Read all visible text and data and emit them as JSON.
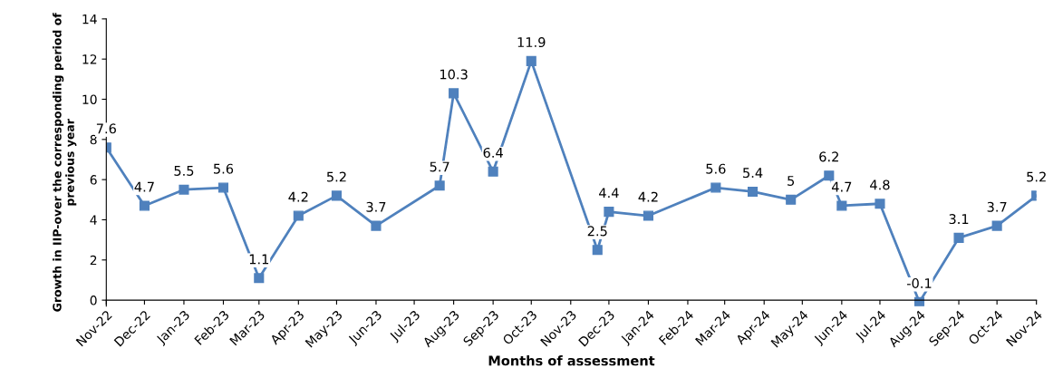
{
  "chart_data": {
    "type": "line",
    "xlabel": "Months of assessment",
    "ylabel": "Growth in IIP-over the corresponding period of\nprevious year",
    "x": [
      "2022-11-01",
      "2022-12-01",
      "2023-01-01",
      "2023-02-01",
      "2023-03-01",
      "2023-04-01",
      "2023-05-01",
      "2023-06-01",
      "2023-07-21",
      "2023-08-01",
      "2023-09-01",
      "2023-10-01",
      "2023-11-22",
      "2023-12-01",
      "2024-01-01",
      "2024-02-23",
      "2024-03-23",
      "2024-04-22",
      "2024-05-22",
      "2024-06-01",
      "2024-07-01",
      "2024-08-01",
      "2024-09-01",
      "2024-10-01",
      "2024-11-01"
    ],
    "series": [
      {
        "color": "#4f81bd",
        "values": [
          7.6,
          4.7,
          5.5,
          5.6,
          1.1,
          4.2,
          5.2,
          3.7,
          5.7,
          10.3,
          6.4,
          11.9,
          2.5,
          4.4,
          4.2,
          5.6,
          5.4,
          5,
          6.2,
          4.7,
          4.8,
          -0.1,
          3.1,
          3.7,
          5.2
        ]
      }
    ],
    "data_labels": true,
    "marker": "square",
    "line_style": "solid",
    "grid": false,
    "legend": false,
    "ylim": [
      -0.3,
      14
    ],
    "yticks": [
      0,
      2,
      4,
      6,
      8,
      10,
      12,
      14
    ],
    "xlim": [
      "2022-11-01",
      "2024-11-01"
    ],
    "xticks": [
      {
        "value": "2022-11-01",
        "label": "Nov-22"
      },
      {
        "value": "2022-12-01",
        "label": "Dec-22"
      },
      {
        "value": "2023-01-01",
        "label": "Jan-23"
      },
      {
        "value": "2023-02-01",
        "label": "Feb-23"
      },
      {
        "value": "2023-03-01",
        "label": "Mar-23"
      },
      {
        "value": "2023-04-01",
        "label": "Apr-23"
      },
      {
        "value": "2023-05-01",
        "label": "May-23"
      },
      {
        "value": "2023-06-01",
        "label": "Jun-23"
      },
      {
        "value": "2023-07-01",
        "label": "Jul-23"
      },
      {
        "value": "2023-08-01",
        "label": "Aug-23"
      },
      {
        "value": "2023-09-01",
        "label": "Sep-23"
      },
      {
        "value": "2023-10-01",
        "label": "Oct-23"
      },
      {
        "value": "2023-11-01",
        "label": "Nov-23"
      },
      {
        "value": "2023-12-01",
        "label": "Dec-23"
      },
      {
        "value": "2024-01-01",
        "label": "Jan-24"
      },
      {
        "value": "2024-02-01",
        "label": "Feb-24"
      },
      {
        "value": "2024-03-01",
        "label": "Mar-24"
      },
      {
        "value": "2024-04-01",
        "label": "Apr-24"
      },
      {
        "value": "2024-05-01",
        "label": "May-24"
      },
      {
        "value": "2024-06-01",
        "label": "Jun-24"
      },
      {
        "value": "2024-07-01",
        "label": "Jul-24"
      },
      {
        "value": "2024-08-01",
        "label": "Aug-24"
      },
      {
        "value": "2024-09-01",
        "label": "Sep-24"
      },
      {
        "value": "2024-10-01",
        "label": "Oct-24"
      },
      {
        "value": "2024-11-01",
        "label": "Nov-24"
      }
    ]
  }
}
